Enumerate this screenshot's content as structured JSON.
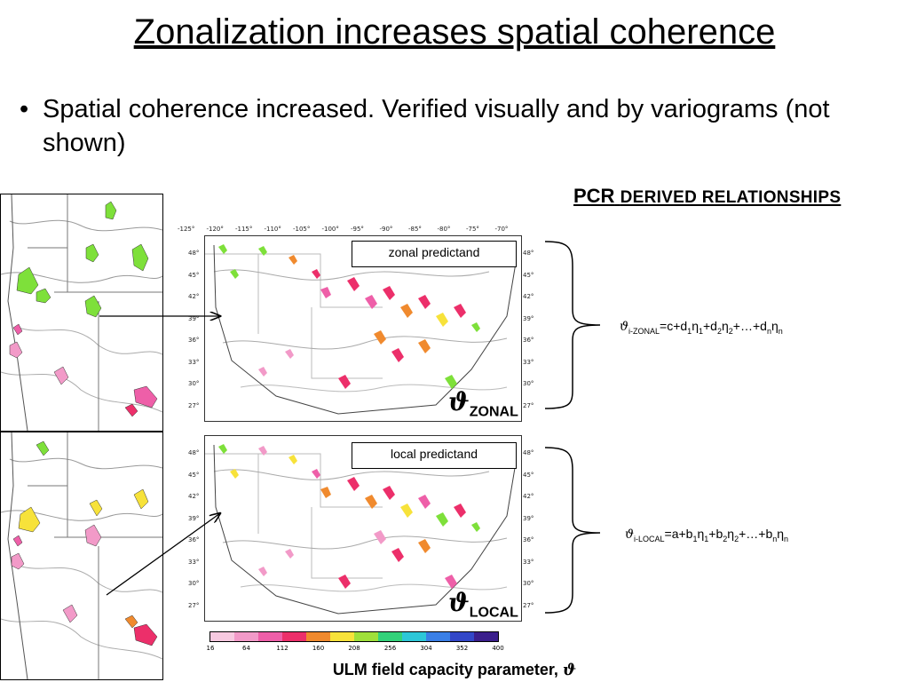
{
  "title": "Zonalization increases spatial coherence",
  "bullet": {
    "symbol": "•",
    "text": "Spatial coherence increased. Verified visually and by variograms (not shown)"
  },
  "pcr_heading": {
    "strong": "PCR",
    "rest": "DERIVED RELATIONSHIPS"
  },
  "maps": {
    "longitude_ticks": [
      "-125°",
      "-120°",
      "-115°",
      "-110°",
      "-105°",
      "-100°",
      "-95°",
      "-90°",
      "-85°",
      "-80°",
      "-75°",
      "-70°"
    ],
    "latitude_ticks": [
      "48°",
      "45°",
      "42°",
      "39°",
      "36°",
      "33°",
      "30°",
      "27°"
    ],
    "zonal": {
      "label": "zonal predictand",
      "symbol": "ϑ",
      "subscript": "ZONAL"
    },
    "local": {
      "label": "local predictand",
      "symbol": "ϑ",
      "subscript": "LOCAL"
    }
  },
  "equations": {
    "zonal": {
      "theta": "ϑ",
      "sub": "i-ZONAL",
      "body": "=c+d1η1+d2η2+…+dnηn"
    },
    "local": {
      "theta": "ϑ",
      "sub": "i-LOCAL",
      "body": "=a+b1η1+b2η2+…+bnηn"
    }
  },
  "colorbar": {
    "ticks": [
      "16",
      "64",
      "112",
      "160",
      "208",
      "256",
      "304",
      "352",
      "400"
    ],
    "colors": [
      "#f7c9e0",
      "#f29ac8",
      "#ee5fa8",
      "#ec2f6a",
      "#f08a2e",
      "#f7e23a",
      "#9fe03a",
      "#33d27a",
      "#2dc7d8",
      "#3a7fe6",
      "#3347c8",
      "#3b1f8c"
    ],
    "label": "ULM field capacity parameter, ",
    "label_symbol": "ϑ"
  }
}
